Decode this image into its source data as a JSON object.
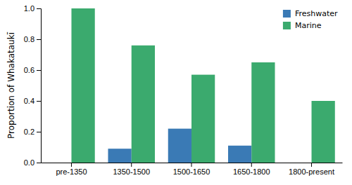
{
  "chart_data": {
    "type": "bar",
    "categories": [
      "pre-1350",
      "1350-1500",
      "1500-1650",
      "1650-1800",
      "1800-present"
    ],
    "series": [
      {
        "name": "Freshwater",
        "color": "#3A7AB5",
        "values": [
          0.0,
          0.09,
          0.22,
          0.11,
          0.0
        ]
      },
      {
        "name": "Marine",
        "color": "#3BAA6E",
        "values": [
          1.0,
          0.76,
          0.57,
          0.65,
          0.4
        ]
      }
    ],
    "y_label": "Proportion of Whakataukī",
    "ylim": [
      0.0,
      1.0
    ],
    "yticks": [
      {
        "value": 0.0,
        "label": "0.0"
      },
      0.2,
      0.4,
      0.6,
      0.8,
      {
        "value": 1.0,
        "label": "1.0"
      }
    ],
    "grid": false,
    "legend": "upper right"
  }
}
